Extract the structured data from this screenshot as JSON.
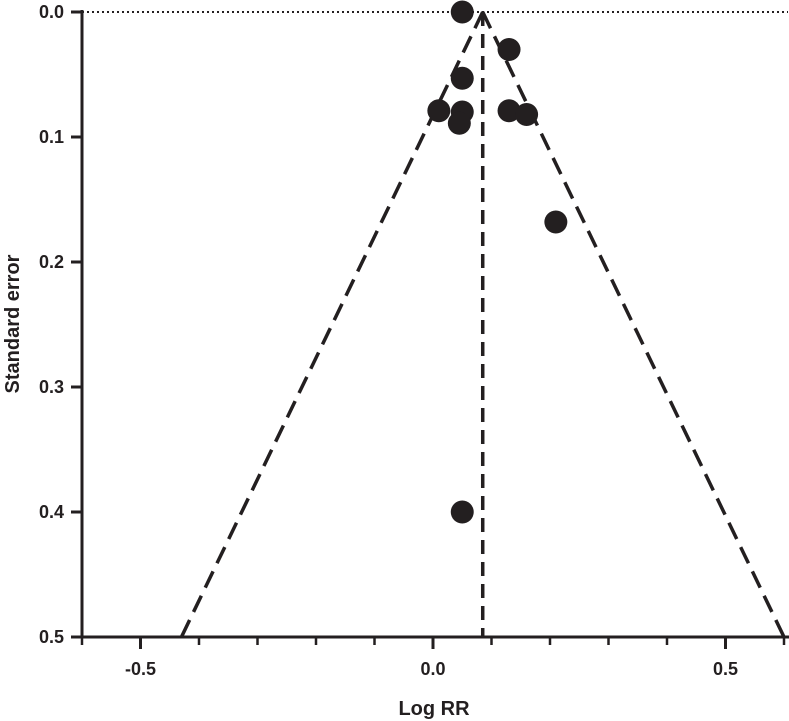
{
  "chart_data": {
    "type": "scatter",
    "subtype": "funnel plot",
    "title": "",
    "xlabel": "Log RR",
    "ylabel": "Standard error",
    "xlim": [
      -0.6,
      0.6
    ],
    "ylim": [
      0,
      0.5
    ],
    "y_inverted": true,
    "x_ticks": [
      -0.5,
      0.0,
      0.5
    ],
    "x_tick_labels": [
      "-0.5",
      "0.0",
      "0.5"
    ],
    "x_minor_tick_step": 0.1,
    "y_ticks": [
      0.0,
      0.1,
      0.2,
      0.3,
      0.4,
      0.5
    ],
    "y_tick_labels": [
      "0.0",
      "0.1",
      "0.2",
      "0.3",
      "0.4",
      "0.5"
    ],
    "grid": false,
    "legend": "none",
    "pooled_estimate": 0.085,
    "funnel_limits": {
      "multiplier": 1.03,
      "style": "dashed"
    },
    "reference_line_y0": {
      "style": "dotted"
    },
    "points": [
      {
        "x": 0.05,
        "y": 0.0
      },
      {
        "x": 0.13,
        "y": 0.03
      },
      {
        "x": 0.05,
        "y": 0.053
      },
      {
        "x": 0.01,
        "y": 0.079
      },
      {
        "x": 0.05,
        "y": 0.08
      },
      {
        "x": 0.13,
        "y": 0.079
      },
      {
        "x": 0.16,
        "y": 0.082
      },
      {
        "x": 0.045,
        "y": 0.089
      },
      {
        "x": 0.21,
        "y": 0.168
      },
      {
        "x": 0.05,
        "y": 0.4
      }
    ],
    "colors": {
      "ink": "#231f20",
      "background": "#ffffff"
    }
  }
}
